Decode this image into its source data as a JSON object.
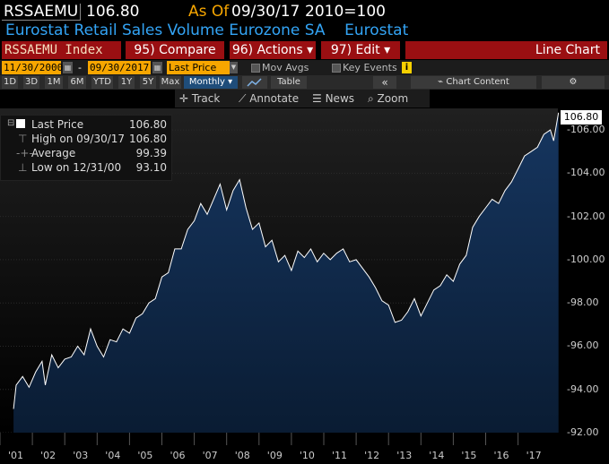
{
  "header": {
    "ticker": "RSSAEMU",
    "price": "106.80",
    "as_of_label": "As Of",
    "as_of_date": "09/30/17",
    "base": "2010=100",
    "description": "Eurostat Retail Sales Volume Eurozone SA    Eurostat"
  },
  "toolbar": {
    "index_label": "RSSAEMU Index",
    "compare": "95) Compare",
    "actions": "96) Actions ▾",
    "edit": "97) Edit ▾",
    "chart_type": "Line Chart"
  },
  "daterow": {
    "start": "11/30/2000",
    "dash": "-",
    "end": "09/30/2017",
    "field": "Last Price",
    "mov_avgs": "Mov Avgs",
    "key_events": "Key Events"
  },
  "periods": [
    "1D",
    "3D",
    "1M",
    "6M",
    "YTD",
    "1Y",
    "5Y",
    "Max"
  ],
  "frequency": "Monthly ▾",
  "table_label": "Table",
  "chart_content_label": "Chart Content",
  "tools": {
    "track": "Track",
    "annotate": "Annotate",
    "news": "News",
    "zoom": "Zoom"
  },
  "legend": {
    "last_label": "Last Price",
    "last_value": "106.80",
    "high_label": "High on 09/30/17",
    "high_value": "106.80",
    "avg_label": "Average",
    "avg_value": "99.39",
    "low_label": "Low on 12/31/00",
    "low_value": "93.10"
  },
  "last_price_box": "106.80",
  "colors": {
    "accent_orange": "#f7a600",
    "desc_blue": "#33a4f5",
    "toolbar_red": "#9a0f12",
    "area_fill": "#0f2a4d"
  },
  "chart_data": {
    "type": "area",
    "ylim": [
      92,
      107
    ],
    "y_ticks": [
      "92.00",
      "94.00",
      "96.00",
      "98.00",
      "100.00",
      "102.00",
      "104.00",
      "106.00"
    ],
    "x_ticks": [
      "'01",
      "'02",
      "'03",
      "'04",
      "'05",
      "'06",
      "'07",
      "'08",
      "'09",
      "'10",
      "'11",
      "'12",
      "'13",
      "'14",
      "'15",
      "'16",
      "'17"
    ],
    "series": [
      {
        "values": [
          [
            2000.92,
            93.1
          ],
          [
            2001.0,
            94.2
          ],
          [
            2001.2,
            94.6
          ],
          [
            2001.4,
            94.1
          ],
          [
            2001.6,
            94.8
          ],
          [
            2001.8,
            95.3
          ],
          [
            2001.9,
            94.2
          ],
          [
            2002.1,
            95.6
          ],
          [
            2002.3,
            95.0
          ],
          [
            2002.5,
            95.4
          ],
          [
            2002.7,
            95.5
          ],
          [
            2002.9,
            96.0
          ],
          [
            2003.1,
            95.6
          ],
          [
            2003.3,
            96.8
          ],
          [
            2003.5,
            96.0
          ],
          [
            2003.7,
            95.5
          ],
          [
            2003.9,
            96.3
          ],
          [
            2004.1,
            96.2
          ],
          [
            2004.3,
            96.8
          ],
          [
            2004.5,
            96.6
          ],
          [
            2004.7,
            97.3
          ],
          [
            2004.9,
            97.5
          ],
          [
            2005.1,
            98.0
          ],
          [
            2005.3,
            98.2
          ],
          [
            2005.5,
            99.2
          ],
          [
            2005.7,
            99.4
          ],
          [
            2005.9,
            100.5
          ],
          [
            2006.1,
            100.5
          ],
          [
            2006.3,
            101.4
          ],
          [
            2006.5,
            101.8
          ],
          [
            2006.7,
            102.6
          ],
          [
            2006.9,
            102.1
          ],
          [
            2007.1,
            102.8
          ],
          [
            2007.3,
            103.5
          ],
          [
            2007.5,
            102.3
          ],
          [
            2007.7,
            103.2
          ],
          [
            2007.9,
            103.7
          ],
          [
            2008.1,
            102.4
          ],
          [
            2008.3,
            101.4
          ],
          [
            2008.5,
            101.7
          ],
          [
            2008.7,
            100.6
          ],
          [
            2008.9,
            100.9
          ],
          [
            2009.1,
            99.9
          ],
          [
            2009.3,
            100.2
          ],
          [
            2009.5,
            99.5
          ],
          [
            2009.7,
            100.4
          ],
          [
            2009.9,
            100.1
          ],
          [
            2010.1,
            100.5
          ],
          [
            2010.3,
            99.9
          ],
          [
            2010.5,
            100.3
          ],
          [
            2010.7,
            100.0
          ],
          [
            2010.9,
            100.3
          ],
          [
            2011.1,
            100.5
          ],
          [
            2011.3,
            99.9
          ],
          [
            2011.5,
            100.0
          ],
          [
            2011.7,
            99.6
          ],
          [
            2011.9,
            99.2
          ],
          [
            2012.1,
            98.7
          ],
          [
            2012.3,
            98.1
          ],
          [
            2012.5,
            97.9
          ],
          [
            2012.7,
            97.1
          ],
          [
            2012.9,
            97.2
          ],
          [
            2013.1,
            97.6
          ],
          [
            2013.3,
            98.2
          ],
          [
            2013.5,
            97.4
          ],
          [
            2013.7,
            98.0
          ],
          [
            2013.9,
            98.6
          ],
          [
            2014.1,
            98.8
          ],
          [
            2014.3,
            99.3
          ],
          [
            2014.5,
            99.0
          ],
          [
            2014.7,
            99.8
          ],
          [
            2014.9,
            100.2
          ],
          [
            2015.1,
            101.5
          ],
          [
            2015.3,
            102.0
          ],
          [
            2015.5,
            102.4
          ],
          [
            2015.7,
            102.8
          ],
          [
            2015.9,
            102.6
          ],
          [
            2016.1,
            103.2
          ],
          [
            2016.3,
            103.6
          ],
          [
            2016.5,
            104.2
          ],
          [
            2016.7,
            104.8
          ],
          [
            2016.9,
            105.0
          ],
          [
            2017.1,
            105.2
          ],
          [
            2017.3,
            105.8
          ],
          [
            2017.5,
            106.0
          ],
          [
            2017.6,
            105.5
          ],
          [
            2017.75,
            106.8
          ]
        ]
      }
    ]
  }
}
